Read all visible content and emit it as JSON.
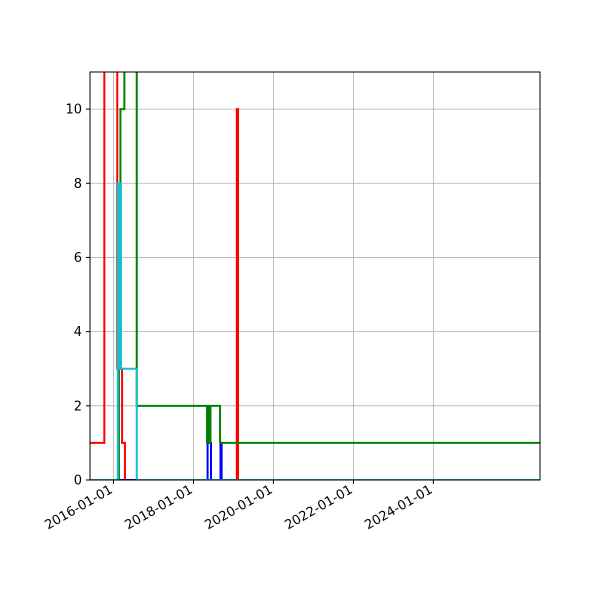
{
  "chart_data": {
    "type": "line",
    "title": "",
    "xlabel": "",
    "ylabel": "",
    "x_axis_type": "date",
    "xlim": [
      "2015-06-01",
      "2026-09-01"
    ],
    "ylim": [
      0,
      11
    ],
    "grid": true,
    "step": true,
    "yticks": [
      0,
      2,
      4,
      6,
      8,
      10
    ],
    "yticks_labels": [
      "0",
      "2",
      "4",
      "6",
      "8",
      "10"
    ],
    "xticks": [
      "2016-01-01",
      "2018-01-01",
      "2020-01-01",
      "2022-01-01",
      "2024-01-01"
    ],
    "xticks_labels": [
      "2016-01-01",
      "2018-01-01",
      "2020-01-01",
      "2022-01-01",
      "2024-01-01"
    ],
    "series": [
      {
        "color": "#ff0000",
        "points": [
          [
            "2015-06-01",
            1
          ],
          [
            "2015-10-10",
            1
          ],
          [
            "2015-10-10",
            11.5
          ],
          [
            "2016-02-05",
            11.5
          ],
          [
            "2016-02-05",
            3
          ],
          [
            "2016-03-20",
            3
          ],
          [
            "2016-03-20",
            1
          ],
          [
            "2016-04-15",
            1
          ],
          [
            "2016-04-15",
            0
          ],
          [
            "2018-08-01",
            0
          ],
          [
            "2018-08-01",
            0
          ],
          [
            "2019-02-01",
            0
          ],
          [
            "2019-02-01",
            10
          ],
          [
            "2019-02-12",
            10
          ],
          [
            "2019-02-12",
            0
          ],
          [
            "2026-09-01",
            0
          ]
        ]
      },
      {
        "color": "#0000ff",
        "points": [
          [
            "2015-06-01",
            0
          ],
          [
            "2018-05-10",
            0
          ],
          [
            "2018-05-10",
            1
          ],
          [
            "2018-06-10",
            1
          ],
          [
            "2018-06-10",
            0
          ],
          [
            "2018-09-05",
            0
          ],
          [
            "2018-09-05",
            1
          ],
          [
            "2018-09-15",
            1
          ],
          [
            "2018-09-15",
            0
          ],
          [
            "2026-09-01",
            0
          ]
        ]
      },
      {
        "color": "#008000",
        "points": [
          [
            "2015-06-01",
            0
          ],
          [
            "2016-02-20",
            0
          ],
          [
            "2016-02-20",
            3
          ],
          [
            "2016-03-05",
            3
          ],
          [
            "2016-03-05",
            10
          ],
          [
            "2016-04-10",
            10
          ],
          [
            "2016-04-10",
            11.5
          ],
          [
            "2016-08-01",
            11.5
          ],
          [
            "2016-08-01",
            2
          ],
          [
            "2018-05-05",
            2
          ],
          [
            "2018-05-05",
            1
          ],
          [
            "2018-05-15",
            1
          ],
          [
            "2018-05-15",
            2
          ],
          [
            "2018-05-25",
            2
          ],
          [
            "2018-05-25",
            1
          ],
          [
            "2018-06-05",
            1
          ],
          [
            "2018-06-05",
            2
          ],
          [
            "2018-09-01",
            2
          ],
          [
            "2018-09-01",
            1
          ],
          [
            "2026-09-01",
            1
          ]
        ]
      },
      {
        "color": "#17becf",
        "points": [
          [
            "2015-06-01",
            0
          ],
          [
            "2016-01-25",
            0
          ],
          [
            "2016-01-25",
            0
          ],
          [
            "2016-02-10",
            0
          ],
          [
            "2016-02-10",
            8
          ],
          [
            "2016-02-25",
            8
          ],
          [
            "2016-02-25",
            3
          ],
          [
            "2016-03-01",
            3
          ],
          [
            "2016-03-01",
            8
          ],
          [
            "2016-03-10",
            8
          ],
          [
            "2016-03-10",
            3
          ],
          [
            "2016-08-01",
            3
          ],
          [
            "2016-08-01",
            0
          ],
          [
            "2026-09-01",
            0
          ]
        ]
      }
    ]
  }
}
